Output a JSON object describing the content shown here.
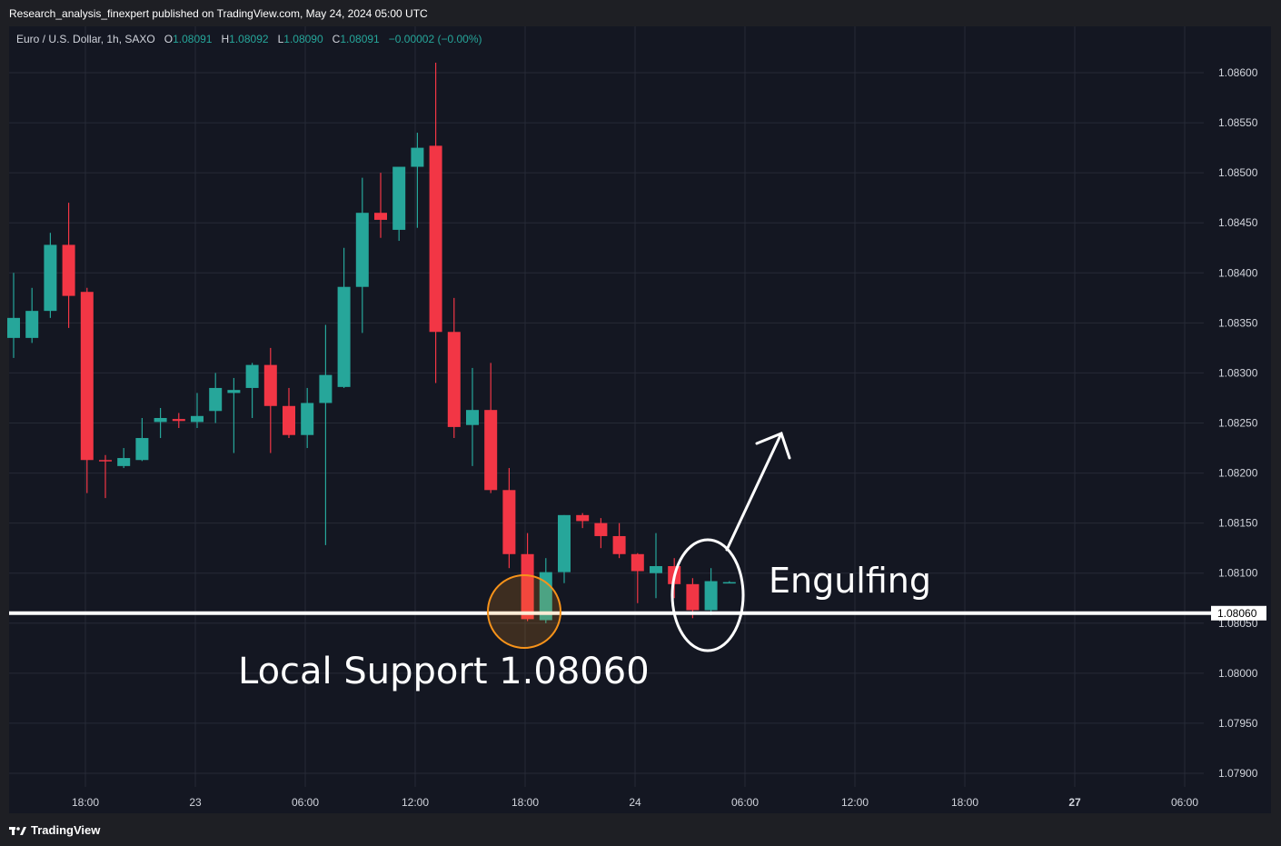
{
  "publish_line": "Research_analysis_finexpert published on TradingView.com, May 24, 2024 05:00 UTC",
  "legend": {
    "symbol": "Euro / U.S. Dollar, 1h, SAXO",
    "open_label": "O",
    "open": "1.08091",
    "high_label": "H",
    "high": "1.08092",
    "low_label": "L",
    "low": "1.08090",
    "close_label": "C",
    "close": "1.08091",
    "change": "−0.00002 (−0.00%)"
  },
  "footer": {
    "brand": "TradingView"
  },
  "colors": {
    "up": "#26a69a",
    "down": "#f23645",
    "background": "#141722",
    "grid": "#262a36",
    "circle_support": "#f7931a"
  },
  "chart_data": {
    "type": "candlestick",
    "instrument": "Euro / U.S. Dollar",
    "timeframe": "1h",
    "ylim": [
      1.0787,
      1.0866
    ],
    "y_ticks": [
      "1.08600",
      "1.08550",
      "1.08500",
      "1.08450",
      "1.08400",
      "1.08350",
      "1.08300",
      "1.08250",
      "1.08200",
      "1.08150",
      "1.08100",
      "1.08050",
      "1.08000",
      "1.07950",
      "1.07900"
    ],
    "x_ticks": [
      "18:00",
      "23",
      "06:00",
      "12:00",
      "18:00",
      "24",
      "06:00",
      "12:00",
      "18:00",
      "27",
      "06:00"
    ],
    "candles": [
      {
        "o": 1.08335,
        "h": 1.084,
        "l": 1.08315,
        "c": 1.08355
      },
      {
        "o": 1.08335,
        "h": 1.08385,
        "l": 1.0833,
        "c": 1.08362
      },
      {
        "o": 1.08362,
        "h": 1.0844,
        "l": 1.08355,
        "c": 1.08428
      },
      {
        "o": 1.08428,
        "h": 1.0847,
        "l": 1.08345,
        "c": 1.08377
      },
      {
        "o": 1.08381,
        "h": 1.08385,
        "l": 1.0818,
        "c": 1.08213
      },
      {
        "o": 1.08213,
        "h": 1.08218,
        "l": 1.08175,
        "c": 1.08212
      },
      {
        "o": 1.08207,
        "h": 1.08225,
        "l": 1.08205,
        "c": 1.08215
      },
      {
        "o": 1.08213,
        "h": 1.08255,
        "l": 1.08212,
        "c": 1.08235
      },
      {
        "o": 1.08251,
        "h": 1.08265,
        "l": 1.08235,
        "c": 1.08255
      },
      {
        "o": 1.08254,
        "h": 1.0826,
        "l": 1.08245,
        "c": 1.08252
      },
      {
        "o": 1.08251,
        "h": 1.0828,
        "l": 1.08245,
        "c": 1.08257
      },
      {
        "o": 1.08262,
        "h": 1.083,
        "l": 1.0825,
        "c": 1.08285
      },
      {
        "o": 1.0828,
        "h": 1.08295,
        "l": 1.0822,
        "c": 1.08283
      },
      {
        "o": 1.08285,
        "h": 1.0831,
        "l": 1.08255,
        "c": 1.08308
      },
      {
        "o": 1.08308,
        "h": 1.08325,
        "l": 1.0822,
        "c": 1.08267
      },
      {
        "o": 1.08267,
        "h": 1.08285,
        "l": 1.08235,
        "c": 1.08238
      },
      {
        "o": 1.08238,
        "h": 1.08285,
        "l": 1.08225,
        "c": 1.0827
      },
      {
        "o": 1.0827,
        "h": 1.08348,
        "l": 1.08128,
        "c": 1.08298
      },
      {
        "o": 1.08286,
        "h": 1.08425,
        "l": 1.08285,
        "c": 1.08386
      },
      {
        "o": 1.08386,
        "h": 1.08495,
        "l": 1.0834,
        "c": 1.0846
      },
      {
        "o": 1.0846,
        "h": 1.085,
        "l": 1.08435,
        "c": 1.08453
      },
      {
        "o": 1.08443,
        "h": 1.08505,
        "l": 1.08432,
        "c": 1.08506
      },
      {
        "o": 1.08506,
        "h": 1.0854,
        "l": 1.08445,
        "c": 1.08525
      },
      {
        "o": 1.08527,
        "h": 1.0861,
        "l": 1.0829,
        "c": 1.08341
      },
      {
        "o": 1.08341,
        "h": 1.08375,
        "l": 1.08235,
        "c": 1.08246
      },
      {
        "o": 1.08248,
        "h": 1.08305,
        "l": 1.08207,
        "c": 1.08263
      },
      {
        "o": 1.08263,
        "h": 1.0831,
        "l": 1.0818,
        "c": 1.08183
      },
      {
        "o": 1.08183,
        "h": 1.08205,
        "l": 1.08105,
        "c": 1.08119
      },
      {
        "o": 1.08119,
        "h": 1.0814,
        "l": 1.08052,
        "c": 1.08054
      },
      {
        "o": 1.08053,
        "h": 1.08115,
        "l": 1.0805,
        "c": 1.08101
      },
      {
        "o": 1.08101,
        "h": 1.08158,
        "l": 1.0809,
        "c": 1.08158
      },
      {
        "o": 1.08158,
        "h": 1.0816,
        "l": 1.08145,
        "c": 1.08152
      },
      {
        "o": 1.0815,
        "h": 1.08155,
        "l": 1.08125,
        "c": 1.08137
      },
      {
        "o": 1.08137,
        "h": 1.0815,
        "l": 1.08115,
        "c": 1.08119
      },
      {
        "o": 1.08119,
        "h": 1.0812,
        "l": 1.0807,
        "c": 1.08102
      },
      {
        "o": 1.081,
        "h": 1.0814,
        "l": 1.08075,
        "c": 1.08107
      },
      {
        "o": 1.08107,
        "h": 1.08115,
        "l": 1.08075,
        "c": 1.08089
      },
      {
        "o": 1.08089,
        "h": 1.08095,
        "l": 1.08055,
        "c": 1.08063
      },
      {
        "o": 1.08063,
        "h": 1.08105,
        "l": 1.08058,
        "c": 1.08092
      },
      {
        "o": 1.08091,
        "h": 1.08092,
        "l": 1.0809,
        "c": 1.08091
      }
    ],
    "support_level": 1.0806,
    "price_tag": "1.08060",
    "annotations": {
      "support_text": "Local Support 1.08060",
      "pattern_text": "Engulfing"
    }
  }
}
